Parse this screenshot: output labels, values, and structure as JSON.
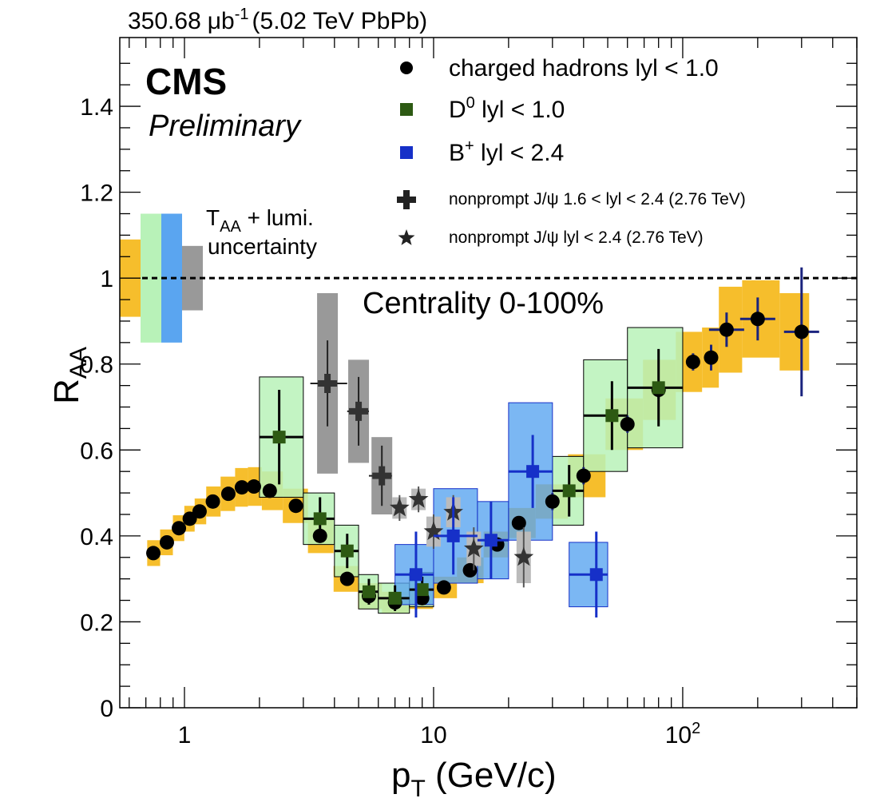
{
  "chart_data": {
    "type": "scatter",
    "header": {
      "lumi": "350.68",
      "lumi_unit": "μb",
      "lumi_exp": "-1",
      "energy": "(5.02 TeV PbPb)"
    },
    "cms": "CMS",
    "preliminary": "Preliminary",
    "centrality": "Centrality 0-100%",
    "uncertainty_label": {
      "t": "T",
      "t_sub": "AA",
      "rest": " + lumi.",
      "line2": "uncertainty"
    },
    "xaxis": {
      "label": "p",
      "label_sub": "T",
      "label_rest": " (GeV/c)",
      "log": true,
      "range": [
        0.55,
        500
      ],
      "ticks": [
        {
          "v": 1,
          "base": "1",
          "exp": ""
        },
        {
          "v": 10,
          "base": "10",
          "exp": ""
        },
        {
          "v": 100,
          "base": "10",
          "exp": "2"
        }
      ]
    },
    "yaxis": {
      "label": "R",
      "label_sub": "AA",
      "range": [
        0,
        1.56
      ],
      "ticks": [
        {
          "v": 0,
          "label": "0"
        },
        {
          "v": 0.2,
          "label": "0.2"
        },
        {
          "v": 0.4,
          "label": "0.4"
        },
        {
          "v": 0.6,
          "label": "0.6"
        },
        {
          "v": 0.8,
          "label": "0.8"
        },
        {
          "v": 1,
          "label": "1"
        },
        {
          "v": 1.2,
          "label": "1.2"
        },
        {
          "v": 1.4,
          "label": "1.4"
        }
      ]
    },
    "reference_line": 1.0,
    "legend": [
      {
        "marker": "circle",
        "color": "#000000",
        "text": "charged hadrons lyl < 1.0",
        "big": true
      },
      {
        "marker": "square",
        "color": "#2d5a13",
        "text": "D",
        "sup": "0",
        "rest": " lyl < 1.0",
        "big": true
      },
      {
        "marker": "square",
        "color": "#1630c8",
        "text": "B",
        "sup": "+",
        "rest": " lyl < 2.4",
        "big": true
      },
      {
        "marker": "cross",
        "color": "#222222",
        "text": "nonprompt J/ψ 1.6 < lyl < 2.4 (2.76 TeV)",
        "big": false
      },
      {
        "marker": "star",
        "color": "#222222",
        "text": "nonprompt J/ψ lyl < 2.4 (2.76 TeV)",
        "big": false
      }
    ],
    "series": [
      {
        "name": "charged hadrons",
        "color": "#000000",
        "sys_color": "#f6be2c",
        "x": [
          0.75,
          0.85,
          0.95,
          1.05,
          1.15,
          1.3,
          1.5,
          1.7,
          1.9,
          2.2,
          2.8,
          3.5,
          4.5,
          5.5,
          7,
          9,
          11,
          14,
          18,
          22,
          30,
          40,
          60,
          80,
          110,
          130,
          150,
          200,
          300
        ],
        "y": [
          0.36,
          0.385,
          0.418,
          0.44,
          0.457,
          0.48,
          0.498,
          0.513,
          0.515,
          0.505,
          0.47,
          0.4,
          0.3,
          0.26,
          0.245,
          0.255,
          0.28,
          0.32,
          0.38,
          0.43,
          0.48,
          0.54,
          0.66,
          0.74,
          0.805,
          0.815,
          0.88,
          0.905,
          0.875
        ],
        "err": [
          0.01,
          0.01,
          0.01,
          0.01,
          0.01,
          0.01,
          0.01,
          0.01,
          0.01,
          0.01,
          0.01,
          0.01,
          0.01,
          0.01,
          0.01,
          0.01,
          0.01,
          0.01,
          0.01,
          0.01,
          0.02,
          0.02,
          0.02,
          0.02,
          0.02,
          0.03,
          0.04,
          0.05,
          0.15
        ],
        "sys": [
          0.03,
          0.03,
          0.03,
          0.03,
          0.03,
          0.035,
          0.04,
          0.045,
          0.045,
          0.045,
          0.04,
          0.04,
          0.03,
          0.03,
          0.025,
          0.025,
          0.025,
          0.03,
          0.03,
          0.035,
          0.04,
          0.05,
          0.06,
          0.07,
          0.07,
          0.07,
          0.1,
          0.09,
          0.09
        ]
      },
      {
        "name": "D0",
        "color": "#2d5a13",
        "sys_color": "#b8f2b8",
        "x": [
          2.4,
          3.5,
          4.5,
          5.5,
          7,
          9,
          35,
          52,
          80
        ],
        "y": [
          0.63,
          0.44,
          0.365,
          0.27,
          0.255,
          0.275,
          0.505,
          0.68,
          0.745
        ],
        "err": [
          0.11,
          0.05,
          0.04,
          0.03,
          0.03,
          0.03,
          0.06,
          0.08,
          0.09
        ],
        "xlo": [
          2.0,
          3.0,
          4.0,
          5.0,
          6.0,
          8.0,
          30,
          40,
          60
        ],
        "xhi": [
          3.0,
          4.0,
          5.0,
          6.0,
          8.0,
          10,
          40,
          60,
          100
        ],
        "sys": [
          0.14,
          0.06,
          0.06,
          0.04,
          0.035,
          0.04,
          0.08,
          0.13,
          0.14
        ]
      },
      {
        "name": "B+",
        "color": "#1630c8",
        "sys_color": "#5aa5f0",
        "x": [
          8.5,
          12,
          17,
          25,
          45
        ],
        "y": [
          0.31,
          0.4,
          0.39,
          0.55,
          0.31
        ],
        "err": [
          0.1,
          0.09,
          0.09,
          0.085,
          0.1
        ],
        "xlo": [
          7,
          10,
          15,
          20,
          35
        ],
        "xhi": [
          10,
          15,
          20,
          30,
          50
        ],
        "sys": [
          0.07,
          0.11,
          0.09,
          0.16,
          0.075
        ]
      },
      {
        "name": "nonprompt J/psi 1.6<|y|<2.4",
        "color": "#333333",
        "sys_color": "#999999",
        "x": [
          3.75,
          5.0,
          6.2
        ],
        "y": [
          0.755,
          0.69,
          0.54
        ],
        "err": [
          0.1,
          0.08,
          0.07
        ],
        "xlo": [
          3.2,
          4.5,
          5.5
        ],
        "xhi": [
          4.5,
          5.5,
          6.8
        ],
        "sys": [
          0.21,
          0.12,
          0.09
        ]
      },
      {
        "name": "nonprompt J/psi |y|<2.4",
        "color": "#333333",
        "sys_color": "#bbbbbb",
        "x": [
          7.3,
          8.7,
          10,
          12,
          14.5,
          23
        ],
        "y": [
          0.465,
          0.485,
          0.41,
          0.455,
          0.37,
          0.35
        ],
        "err": [
          0.03,
          0.03,
          0.04,
          0.04,
          0.05,
          0.07
        ],
        "sys": [
          0.025,
          0.025,
          0.035,
          0.035,
          0.04,
          0.06
        ]
      }
    ],
    "global_uncertainty_boxes": [
      {
        "color": "#f6be2c",
        "lo": 0.91,
        "hi": 1.09
      },
      {
        "color": "#b8f2b8",
        "lo": 0.85,
        "hi": 1.15
      },
      {
        "color": "#5aa5f0",
        "lo": 0.85,
        "hi": 1.15
      },
      {
        "color": "#999999",
        "lo": 0.925,
        "hi": 1.075
      }
    ]
  }
}
